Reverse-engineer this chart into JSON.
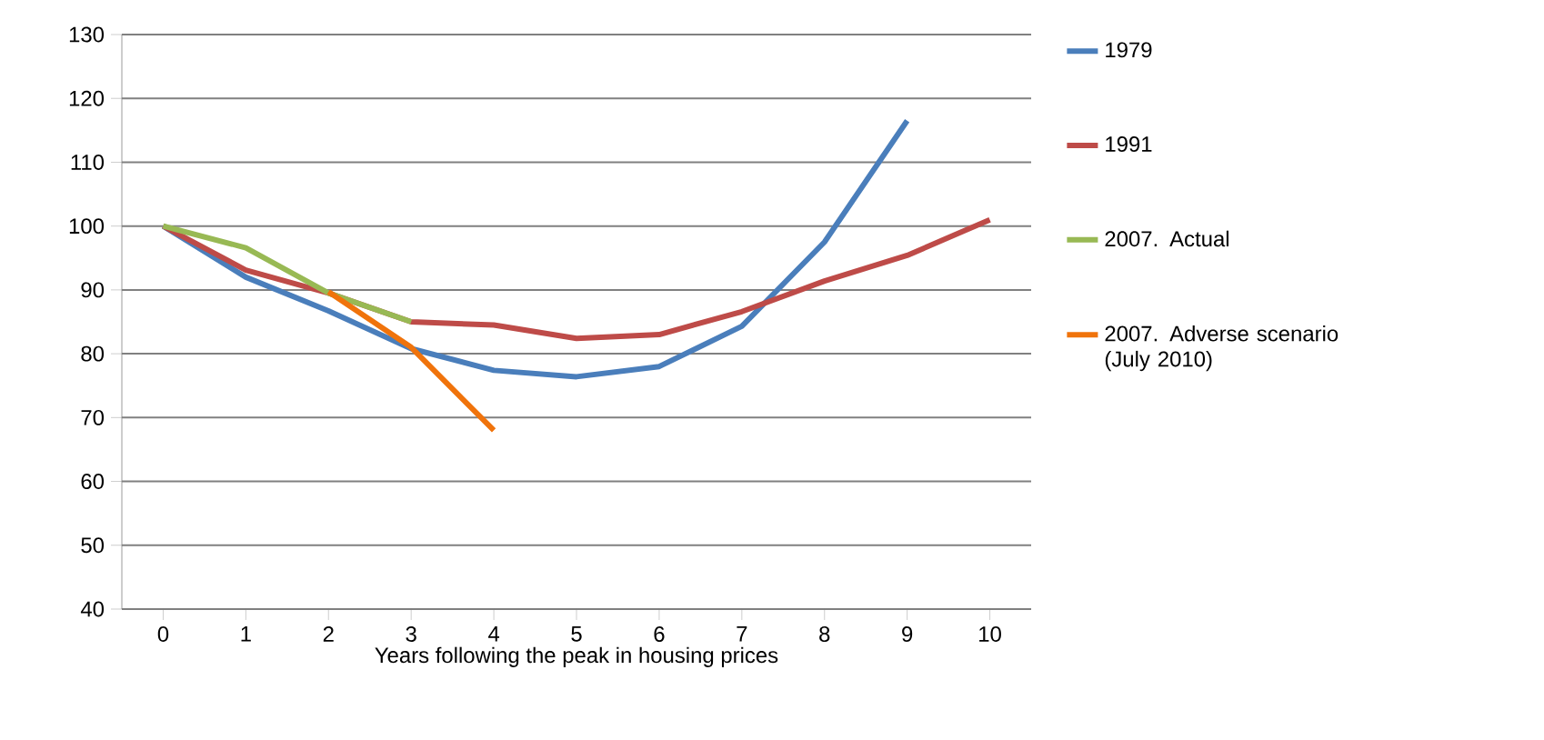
{
  "chart_data": {
    "type": "line",
    "xlabel": "Years following  the peak in housing prices",
    "categories": [
      "0",
      "1",
      "2",
      "3",
      "4",
      "5",
      "6",
      "7",
      "8",
      "9",
      "10"
    ],
    "series": [
      {
        "name": "1979",
        "color": "#4a7ebb",
        "values": [
          100,
          92,
          86.7,
          80.8,
          77.4,
          76.4,
          78,
          84.3,
          97.5,
          116.5,
          null
        ]
      },
      {
        "name": "1991",
        "color": "#be4b48",
        "values": [
          100,
          93.1,
          89.5,
          85,
          84.5,
          82.4,
          83,
          86.6,
          91.4,
          95.4,
          101
        ]
      },
      {
        "name": "2007. Actual",
        "color": "#98b954",
        "values": [
          100,
          96.6,
          89.5,
          85,
          null,
          null,
          null,
          null,
          null,
          null,
          null
        ]
      },
      {
        "name": "2007. Adverse scenario (July 2010)",
        "color": "#f0730b",
        "values": [
          null,
          null,
          89.7,
          81,
          68,
          null,
          null,
          null,
          null,
          null,
          null
        ]
      }
    ],
    "ylim": [
      40,
      130
    ],
    "yticks": [
      40,
      50,
      60,
      70,
      80,
      90,
      100,
      110,
      120,
      130
    ],
    "grid": "y",
    "legend": "right",
    "marker": "none",
    "line_style": "solid"
  }
}
